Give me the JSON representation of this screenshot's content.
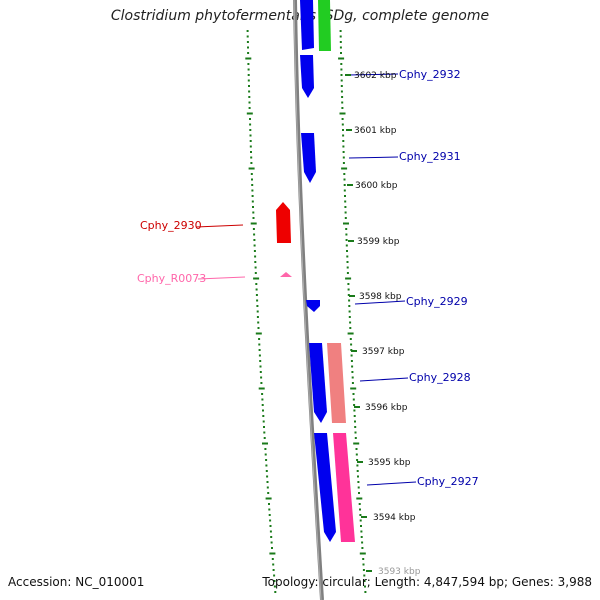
{
  "title": "Clostridium phytofermentans ISDg, complete genome",
  "footer": {
    "accession": "Accession: NC_010001",
    "summary": "Topology: circular; Length: 4,847,594 bp; Genes: 3,988"
  },
  "colors": {
    "backbone": "#808080",
    "dots": "#1a7a1a",
    "forward_gene": "#0000ee",
    "reverse_gene": "#ee0000",
    "rrna": "#f08080",
    "trna": "#ff3399",
    "highlight": "#22cc22",
    "label_blue": "#0000aa",
    "label_red": "#cc0000",
    "label_pink": "#ff66aa"
  },
  "scale_ticks": [
    "3602 kbp",
    "3601 kbp",
    "3600 kbp",
    "3599 kbp",
    "3598 kbp",
    "3597 kbp",
    "3596 kbp",
    "3595 kbp",
    "3594 kbp",
    "3593 kbp"
  ],
  "gene_labels": {
    "cphy_2932": "Cphy_2932",
    "cphy_2931": "Cphy_2931",
    "cphy_2930": "Cphy_2930",
    "cphy_r0073": "Cphy_R0073",
    "cphy_2929": "Cphy_2929",
    "cphy_2928": "Cphy_2928",
    "cphy_2927": "Cphy_2927"
  }
}
